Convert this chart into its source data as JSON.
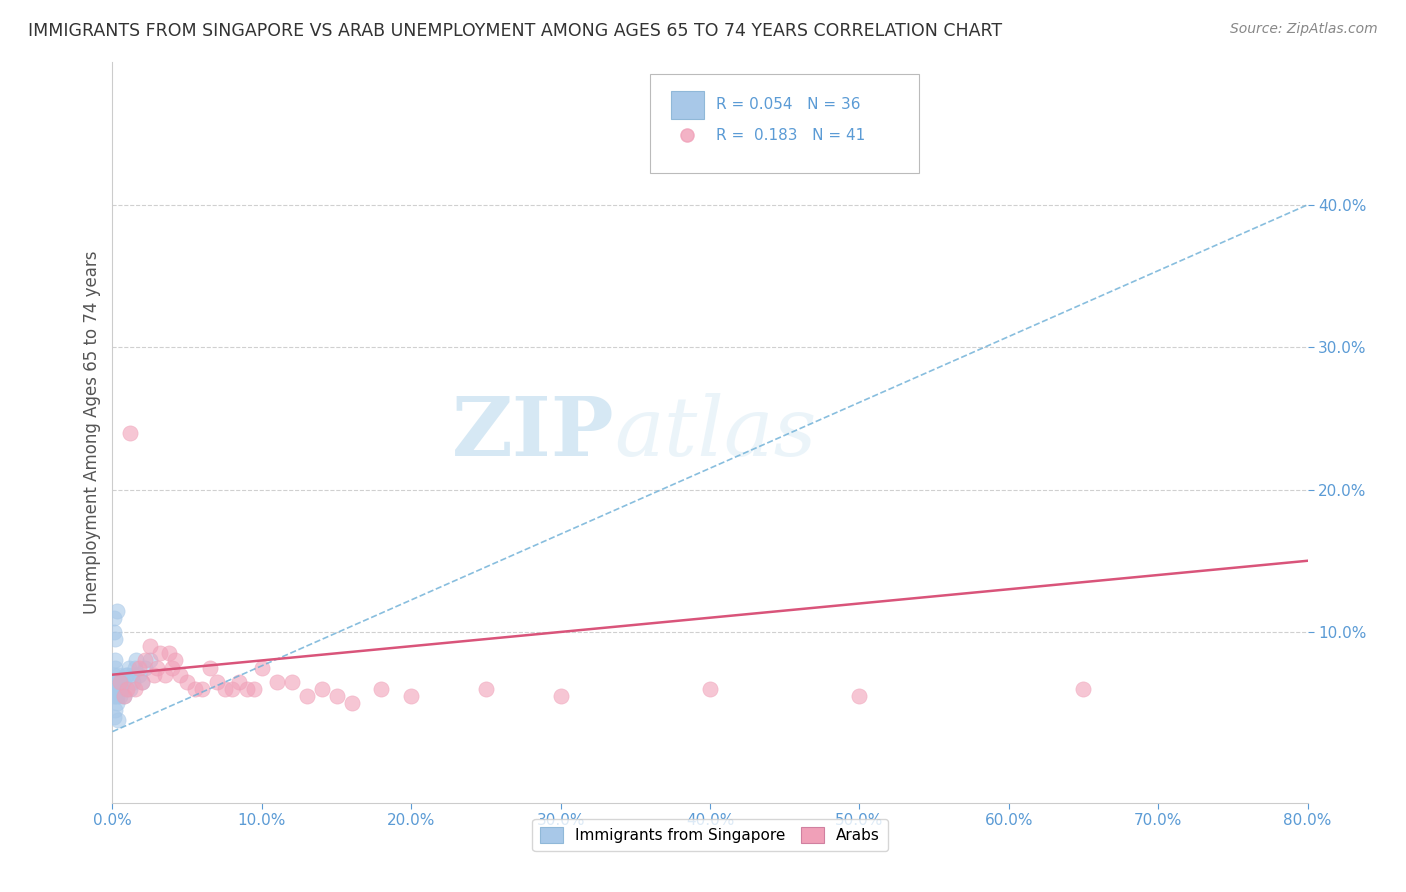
{
  "title": "IMMIGRANTS FROM SINGAPORE VS ARAB UNEMPLOYMENT AMONG AGES 65 TO 74 YEARS CORRELATION CHART",
  "source": "Source: ZipAtlas.com",
  "ylabel": "Unemployment Among Ages 65 to 74 years",
  "xlim": [
    0.0,
    0.8
  ],
  "ylim": [
    -0.02,
    0.5
  ],
  "watermark_zip": "ZIP",
  "watermark_atlas": "atlas",
  "legend_label1": "Immigrants from Singapore",
  "legend_label2": "Arabs",
  "r1": 0.054,
  "n1": 36,
  "r2": 0.183,
  "n2": 41,
  "color1": "#a8c8e8",
  "color2": "#f0a0b8",
  "line_color1": "#6baed6",
  "line_color2": "#d9547a",
  "background_color": "#ffffff",
  "title_color": "#333333",
  "tick_color": "#5b9bd5",
  "grid_color": "#d0d0d0",
  "singapore_x": [
    0.001,
    0.001,
    0.001,
    0.002,
    0.002,
    0.002,
    0.002,
    0.003,
    0.003,
    0.003,
    0.004,
    0.004,
    0.005,
    0.005,
    0.006,
    0.007,
    0.008,
    0.009,
    0.01,
    0.011,
    0.012,
    0.013,
    0.014,
    0.015,
    0.016,
    0.018,
    0.02,
    0.022,
    0.025,
    0.001,
    0.001,
    0.002,
    0.003,
    0.001,
    0.002,
    0.004
  ],
  "singapore_y": [
    0.055,
    0.06,
    0.07,
    0.065,
    0.055,
    0.075,
    0.08,
    0.05,
    0.065,
    0.055,
    0.06,
    0.07,
    0.06,
    0.055,
    0.06,
    0.065,
    0.055,
    0.07,
    0.07,
    0.075,
    0.06,
    0.07,
    0.065,
    0.075,
    0.08,
    0.07,
    0.065,
    0.075,
    0.08,
    0.1,
    0.11,
    0.095,
    0.115,
    0.04,
    0.045,
    0.038
  ],
  "arab_x": [
    0.012,
    0.005,
    0.008,
    0.01,
    0.015,
    0.018,
    0.02,
    0.022,
    0.025,
    0.028,
    0.03,
    0.032,
    0.035,
    0.038,
    0.04,
    0.042,
    0.045,
    0.05,
    0.055,
    0.06,
    0.065,
    0.07,
    0.075,
    0.08,
    0.085,
    0.09,
    0.095,
    0.1,
    0.11,
    0.12,
    0.13,
    0.14,
    0.15,
    0.16,
    0.18,
    0.2,
    0.25,
    0.3,
    0.4,
    0.5,
    0.65
  ],
  "arab_y": [
    0.24,
    0.065,
    0.055,
    0.06,
    0.06,
    0.075,
    0.065,
    0.08,
    0.09,
    0.07,
    0.075,
    0.085,
    0.07,
    0.085,
    0.075,
    0.08,
    0.07,
    0.065,
    0.06,
    0.06,
    0.075,
    0.065,
    0.06,
    0.06,
    0.065,
    0.06,
    0.06,
    0.075,
    0.065,
    0.065,
    0.055,
    0.06,
    0.055,
    0.05,
    0.06,
    0.055,
    0.06,
    0.055,
    0.06,
    0.055,
    0.06
  ],
  "xtick_vals": [
    0.0,
    0.1,
    0.2,
    0.3,
    0.4,
    0.5,
    0.6,
    0.7,
    0.8
  ],
  "xtick_labels": [
    "0.0%",
    "10.0%",
    "20.0%",
    "30.0%",
    "40.0%",
    "50.0%",
    "60.0%",
    "70.0%",
    "80.0%"
  ],
  "ytick_vals": [
    0.1,
    0.2,
    0.3,
    0.4
  ],
  "ytick_labels": [
    "10.0%",
    "20.0%",
    "30.0%",
    "40.0%"
  ]
}
